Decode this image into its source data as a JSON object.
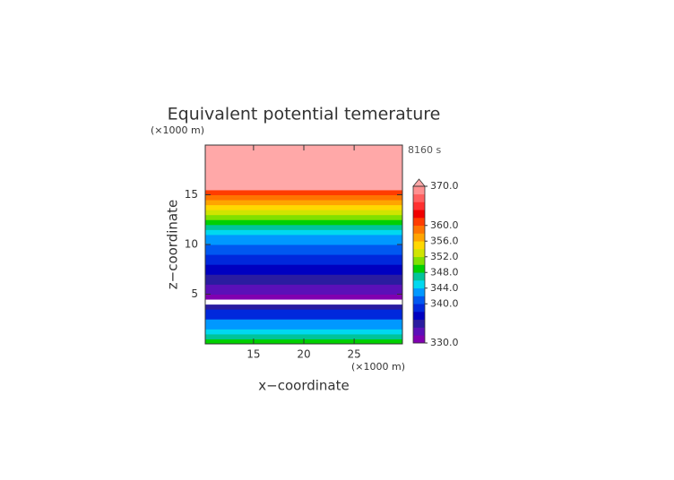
{
  "chart_data": {
    "type": "contour_bands",
    "title": "Equivalent potential temerature",
    "time_label": "8160 s",
    "x_label": "x−coordinate",
    "y_label": "z−coordinate",
    "x_unit": "(×1000 m)",
    "y_unit": "(×1000 m)",
    "xlim": [
      10.2,
      29.8
    ],
    "xticks": [
      15,
      20,
      25
    ],
    "ylim": [
      0,
      20
    ],
    "yticks": [
      5,
      10,
      15
    ],
    "z_edges": [
      0,
      0.5,
      1,
      1.5,
      2.5,
      3.5,
      4,
      4.5,
      5,
      6,
      7,
      8,
      9,
      10,
      11,
      11.5,
      12,
      12.5,
      13,
      13.5,
      14,
      14.5,
      15,
      15.5,
      20
    ],
    "values": [
      349,
      346,
      344,
      342,
      338,
      335,
      329,
      331,
      333,
      335,
      337,
      339,
      341,
      343,
      345,
      347,
      349,
      351,
      353,
      355,
      357,
      359,
      361,
      371
    ],
    "colorbar": {
      "lim": [
        330,
        370
      ],
      "levels": [
        330,
        332,
        334,
        336,
        338,
        340,
        342,
        344,
        346,
        348,
        350,
        352,
        354,
        356,
        358,
        360,
        362,
        364,
        366,
        368,
        370
      ],
      "colors": [
        "#8000b0",
        "#5a10b8",
        "#2a1ca0",
        "#0000c0",
        "#0028dc",
        "#0058f0",
        "#0098ff",
        "#00d8f0",
        "#00c49a",
        "#00d000",
        "#80e000",
        "#d0e400",
        "#ffd800",
        "#ffa400",
        "#ff7400",
        "#ff3c00",
        "#f00000",
        "#ff3030",
        "#ff6060",
        "#ff9090"
      ],
      "over_color": "#ffa8a8",
      "under_color": "#ffffff",
      "ticks": [
        {
          "value": 330,
          "label": "330.0"
        },
        {
          "value": 340,
          "label": "340.0"
        },
        {
          "value": 344,
          "label": "344.0"
        },
        {
          "value": 348,
          "label": "348.0"
        },
        {
          "value": 352,
          "label": "352.0"
        },
        {
          "value": 356,
          "label": "356.0"
        },
        {
          "value": 360,
          "label": "360.0"
        },
        {
          "value": 370,
          "label": "370.0"
        }
      ]
    }
  }
}
